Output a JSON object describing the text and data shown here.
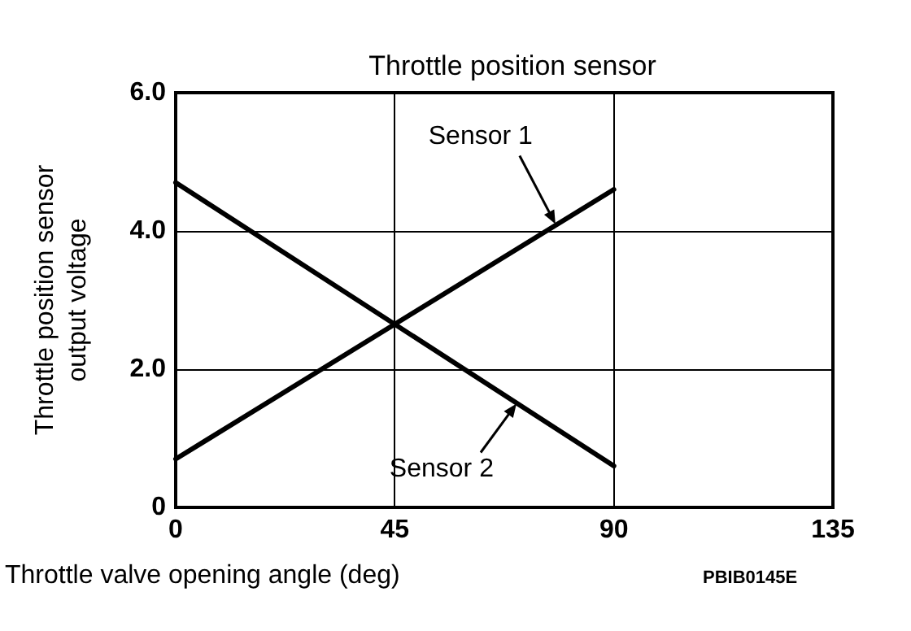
{
  "chart_data": {
    "type": "line",
    "title": "Throttle position sensor",
    "xlabel": "Throttle valve opening angle (deg)",
    "ylabel": "Throttle position sensor\noutput voltage",
    "xlim": [
      0,
      135
    ],
    "xticks": [
      0,
      45,
      90,
      135
    ],
    "ylim": [
      0,
      6
    ],
    "yticks": [
      0,
      {
        "value": 2,
        "label": "2.0"
      },
      {
        "value": 4,
        "label": "4.0"
      },
      {
        "value": 6,
        "label": "6.0"
      }
    ],
    "grid": true,
    "marker": "none",
    "line_style": "solid",
    "x": [
      0,
      90
    ],
    "series": [
      {
        "color": "#000000",
        "values": [
          0.7,
          4.6
        ]
      },
      {
        "color": "#000000",
        "values": [
          4.7,
          0.6
        ]
      }
    ],
    "annotations": [
      {
        "text": "Sensor 1",
        "x": 78,
        "y": 4.1
      },
      {
        "text": "Sensor 2",
        "x": 70,
        "y": 1.5
      },
      "PBIB0145E"
    ]
  }
}
